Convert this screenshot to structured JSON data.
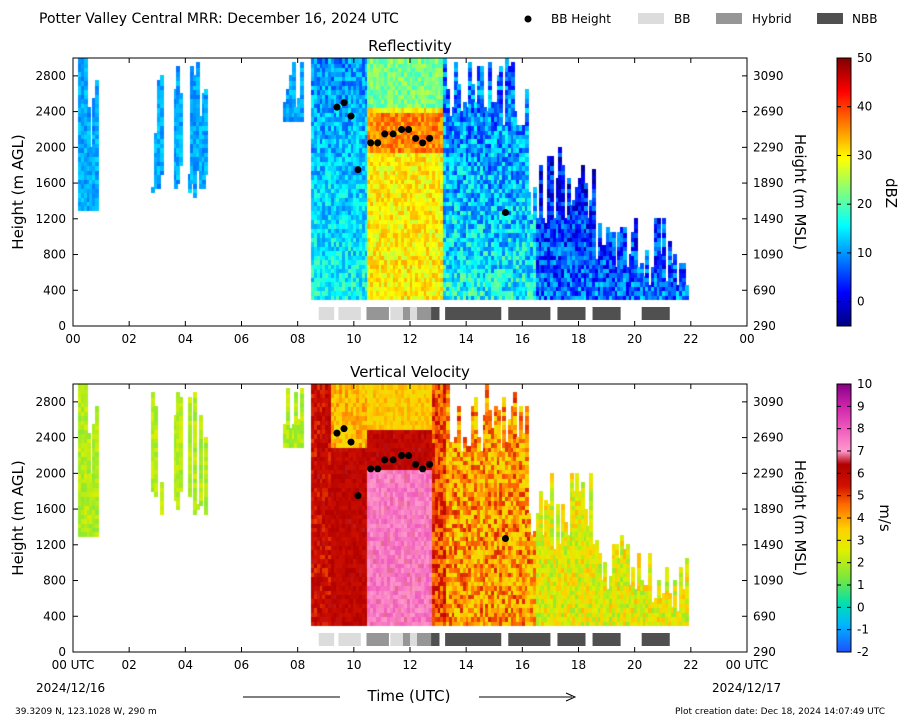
{
  "header": {
    "title": "Potter Valley Central MRR:  December 16, 2024 UTC",
    "legend": [
      {
        "label": "BB Height",
        "kind": "dot",
        "color": "#000000"
      },
      {
        "label": "BB",
        "kind": "box",
        "color": "#dcdcdc"
      },
      {
        "label": "Hybrid",
        "kind": "box",
        "color": "#969696"
      },
      {
        "label": "NBB",
        "kind": "box",
        "color": "#505050"
      }
    ]
  },
  "footer": {
    "coords": "39.3209 N, 123.1028 W, 290 m",
    "creation": "Plot creation date: Dec 18, 2024 14:07:49 UTC",
    "date_left": "2024/12/16",
    "date_right": "2024/12/17",
    "xlabel": "Time (UTC)"
  },
  "chart_data": [
    {
      "type": "heatmap",
      "title": "Reflectivity",
      "ylabel": "Height (m AGL)",
      "ylabel_right": "Height (m MSL)",
      "xlim": [
        0,
        24
      ],
      "ylim": [
        0,
        3000
      ],
      "x_ticks": [
        "00",
        "02",
        "04",
        "06",
        "08",
        "10",
        "12",
        "14",
        "16",
        "18",
        "20",
        "22",
        "00"
      ],
      "y_ticks": [
        0,
        400,
        800,
        1200,
        1600,
        2000,
        2400,
        2800
      ],
      "y_ticks_right": [
        "290",
        "690",
        "1090",
        "1490",
        "1890",
        "2290",
        "2690",
        "3090"
      ],
      "colorbar": {
        "label": "dBZ",
        "min": -5,
        "max": 50,
        "ticks": [
          0,
          10,
          20,
          30,
          40,
          50
        ]
      },
      "bb_height": [
        [
          9.4,
          2450
        ],
        [
          9.65,
          2500
        ],
        [
          9.9,
          2350
        ],
        [
          10.15,
          1750
        ],
        [
          10.6,
          2050
        ],
        [
          10.85,
          2050
        ],
        [
          11.1,
          2150
        ],
        [
          11.4,
          2150
        ],
        [
          11.7,
          2200
        ],
        [
          11.95,
          2200
        ],
        [
          12.2,
          2100
        ],
        [
          12.45,
          2050
        ],
        [
          12.7,
          2100
        ],
        [
          15.4,
          1270
        ]
      ],
      "classification": [
        {
          "start": 8.75,
          "end": 9.3,
          "type": "BB"
        },
        {
          "start": 9.45,
          "end": 10.25,
          "type": "BB"
        },
        {
          "start": 10.45,
          "end": 11.25,
          "type": "Hybrid"
        },
        {
          "start": 11.3,
          "end": 11.75,
          "type": "BB"
        },
        {
          "start": 11.75,
          "end": 12.0,
          "type": "Hybrid"
        },
        {
          "start": 12.0,
          "end": 12.25,
          "type": "BB"
        },
        {
          "start": 12.25,
          "end": 12.75,
          "type": "Hybrid"
        },
        {
          "start": 12.75,
          "end": 13.05,
          "type": "NBB"
        },
        {
          "start": 13.25,
          "end": 15.25,
          "type": "NBB"
        },
        {
          "start": 15.5,
          "end": 17.0,
          "type": "NBB"
        },
        {
          "start": 17.25,
          "end": 18.25,
          "type": "NBB"
        },
        {
          "start": 18.5,
          "end": 19.5,
          "type": "NBB"
        },
        {
          "start": 20.25,
          "end": 21.25,
          "type": "NBB"
        }
      ]
    },
    {
      "type": "heatmap",
      "title": "Vertical Velocity",
      "ylabel": "Height (m AGL)",
      "ylabel_right": "Height (m MSL)",
      "xlim": [
        0,
        24
      ],
      "ylim": [
        0,
        3000
      ],
      "x_ticks": [
        "00 UTC",
        "02",
        "04",
        "06",
        "08",
        "10",
        "12",
        "14",
        "16",
        "18",
        "20",
        "22",
        "00 UTC"
      ],
      "y_ticks": [
        0,
        400,
        800,
        1200,
        1600,
        2000,
        2400,
        2800
      ],
      "y_ticks_right": [
        "290",
        "690",
        "1090",
        "1490",
        "1890",
        "2290",
        "2690",
        "3090"
      ],
      "colorbar": {
        "label": "m/s",
        "min": -2,
        "max": 10,
        "ticks": [
          -2,
          -1,
          0,
          1,
          2,
          3,
          4,
          5,
          6,
          7,
          8,
          9,
          10
        ]
      },
      "bb_height": [
        [
          9.4,
          2450
        ],
        [
          9.65,
          2500
        ],
        [
          9.9,
          2350
        ],
        [
          10.15,
          1750
        ],
        [
          10.6,
          2050
        ],
        [
          10.85,
          2050
        ],
        [
          11.1,
          2150
        ],
        [
          11.4,
          2150
        ],
        [
          11.7,
          2200
        ],
        [
          11.95,
          2200
        ],
        [
          12.2,
          2100
        ],
        [
          12.45,
          2050
        ],
        [
          12.7,
          2100
        ],
        [
          15.4,
          1270
        ]
      ],
      "classification": [
        {
          "start": 8.75,
          "end": 9.3,
          "type": "BB"
        },
        {
          "start": 9.45,
          "end": 10.25,
          "type": "BB"
        },
        {
          "start": 10.45,
          "end": 11.25,
          "type": "Hybrid"
        },
        {
          "start": 11.3,
          "end": 11.75,
          "type": "BB"
        },
        {
          "start": 11.75,
          "end": 12.0,
          "type": "Hybrid"
        },
        {
          "start": 12.0,
          "end": 12.25,
          "type": "BB"
        },
        {
          "start": 12.25,
          "end": 12.75,
          "type": "Hybrid"
        },
        {
          "start": 12.75,
          "end": 13.05,
          "type": "NBB"
        },
        {
          "start": 13.25,
          "end": 15.25,
          "type": "NBB"
        },
        {
          "start": 15.5,
          "end": 17.0,
          "type": "NBB"
        },
        {
          "start": 17.25,
          "end": 18.25,
          "type": "NBB"
        },
        {
          "start": 18.5,
          "end": 19.5,
          "type": "NBB"
        },
        {
          "start": 20.25,
          "end": 21.25,
          "type": "NBB"
        }
      ]
    }
  ]
}
